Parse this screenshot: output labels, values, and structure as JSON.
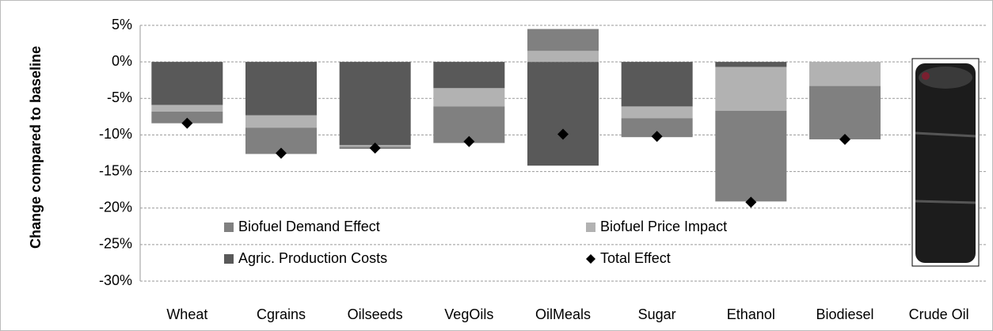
{
  "chart_data": {
    "type": "bar",
    "stacked": true,
    "y_label": "Change compared to baseline",
    "categories": [
      "Wheat",
      "Cgrains",
      "Oilseeds",
      "VegOils",
      "OilMeals",
      "Sugar",
      "Ethanol",
      "Biodiesel",
      "Crude Oil"
    ],
    "series": [
      {
        "name": "Biofuel Demand Effect",
        "color": "#808080",
        "values": [
          -1.6,
          -3.6,
          -0.3,
          -5.0,
          3.0,
          -2.6,
          -12.4,
          -7.3,
          null
        ]
      },
      {
        "name": "Biofuel Price Impact",
        "color": "#b2b2b2",
        "values": [
          -0.9,
          -1.7,
          -0.2,
          -2.5,
          1.5,
          -1.6,
          -6.0,
          -3.3,
          null
        ]
      },
      {
        "name": "Agric. Production Costs",
        "color": "#595959",
        "values": [
          -5.9,
          -7.3,
          -11.4,
          -3.6,
          -14.2,
          -6.1,
          -0.7,
          0,
          null
        ]
      },
      {
        "name": "Total Effect",
        "type": "scatter",
        "marker": "diamond",
        "color": "#000000",
        "values": [
          -8.4,
          -12.5,
          -11.8,
          -10.9,
          -9.9,
          -10.2,
          -19.2,
          -10.6,
          null
        ]
      }
    ],
    "ylim": [
      -30,
      5
    ],
    "yticks": [
      {
        "value": 5,
        "label": "5%"
      },
      {
        "value": 0,
        "label": "0%"
      },
      {
        "value": -5,
        "label": "-5%"
      },
      {
        "value": -10,
        "label": "-10%"
      },
      {
        "value": -15,
        "label": "-15%"
      },
      {
        "value": -20,
        "label": "-20%"
      },
      {
        "value": -25,
        "label": "-25%"
      },
      {
        "value": -30,
        "label": "-30%"
      }
    ],
    "grid": true
  }
}
